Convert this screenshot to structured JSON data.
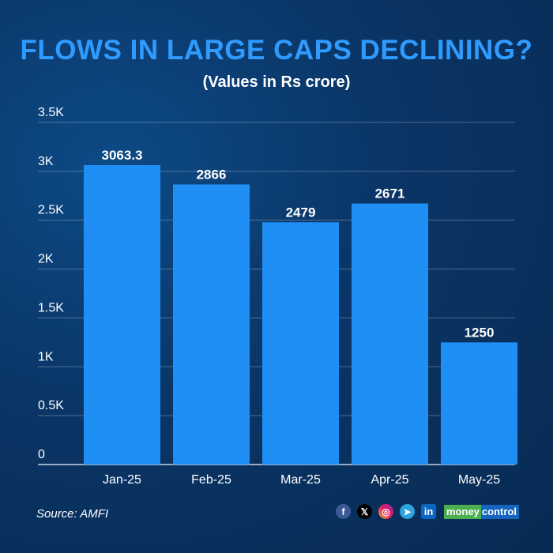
{
  "title": "FLOWS IN LARGE CAPS DECLINING?",
  "subtitle": "(Values in Rs crore)",
  "source": "Source: AMFI",
  "colors": {
    "bar": "#1f8ff5",
    "title": "#2f9bff",
    "background": "#0a3566"
  },
  "social": {
    "icons": [
      "facebook-icon",
      "x-icon",
      "instagram-icon",
      "telegram-icon",
      "linkedin-icon"
    ],
    "logo": [
      "money",
      "control"
    ]
  },
  "chart_data": {
    "type": "bar",
    "categories": [
      "Jan-25",
      "Feb-25",
      "Mar-25",
      "Apr-25",
      "May-25"
    ],
    "values": [
      3063.3,
      2866,
      2479,
      2671,
      1250
    ],
    "data_labels": [
      "3063.3",
      "2866",
      "2479",
      "2671",
      "1250"
    ],
    "ylim": [
      0,
      3500
    ],
    "yticks": [
      0,
      500,
      1000,
      1500,
      2000,
      2500,
      3000,
      3500
    ],
    "ytick_labels": [
      "0",
      "0.5K",
      "1K",
      "1.5K",
      "2K",
      "2.5K",
      "3K",
      "3.5K"
    ],
    "grid": true
  }
}
